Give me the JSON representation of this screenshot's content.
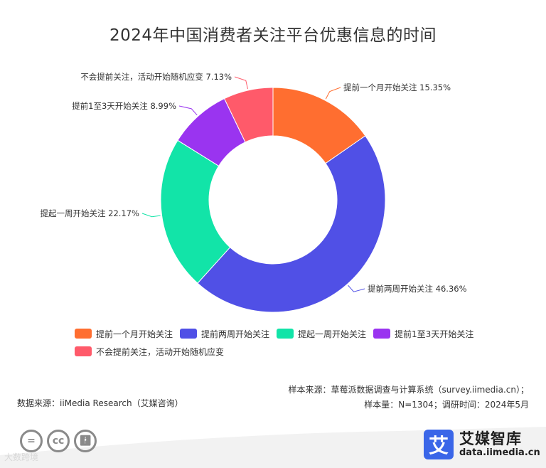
{
  "title": "2024年中国消费者关注平台优惠信息的时间",
  "chart_data": {
    "type": "pie",
    "donut": true,
    "title": "2024年中国消费者关注平台优惠信息的时间",
    "categories": [
      "提前一个月开始关注",
      "提前两周开始关注",
      "提起一周开始关注",
      "提前1至3天开始关注",
      "不会提前关注，活动开始随机应变"
    ],
    "values": [
      15.35,
      46.36,
      22.17,
      8.99,
      7.13
    ],
    "labels": [
      "提前一个月开始关注 15.35%",
      "提前两周开始关注 46.36%",
      "提起一周开始关注 22.17%",
      "提前1至3天开始关注 8.99%",
      "不会提前关注，活动开始随机应变 7.13%"
    ],
    "colors": [
      "#ff6e30",
      "#5050e6",
      "#12e4a8",
      "#9a34f0",
      "#ff5a6a"
    ],
    "legend_position": "bottom"
  },
  "footer": {
    "source": "数据来源：iiMedia Research（艾媒咨询）",
    "sample_source": "样本来源：草莓派数据调查与计算系统（survey.iimedia.cn）；",
    "sample_size": "样本量：N=1304；调研时间：2024年5月"
  },
  "brand": {
    "logo_char": "艾",
    "name": "艾媒智库",
    "url": "data.iimedia.cn"
  },
  "watermark": "大数跨境",
  "icons": [
    "cc-equal-icon",
    "cc-icon",
    "cc-person-icon"
  ]
}
